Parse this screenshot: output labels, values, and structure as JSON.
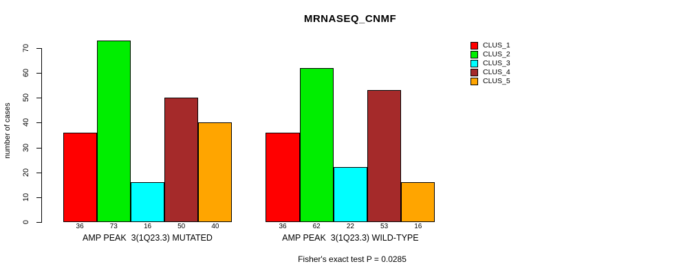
{
  "chart_data": {
    "type": "bar",
    "title": "MRNASEQ_CNMF",
    "ylabel": "number of cases",
    "xlabel": "",
    "ylim": [
      0,
      73
    ],
    "yticks": [
      0,
      10,
      20,
      30,
      40,
      50,
      60,
      70
    ],
    "grid": false,
    "legend_position": "right",
    "series": [
      {
        "name": "CLUS_1",
        "color": "#ff0000"
      },
      {
        "name": "CLUS_2",
        "color": "#00ee00"
      },
      {
        "name": "CLUS_3",
        "color": "#00ffff"
      },
      {
        "name": "CLUS_4",
        "color": "#a52a2a"
      },
      {
        "name": "CLUS_5",
        "color": "#ffa500"
      }
    ],
    "groups": [
      {
        "label": "AMP PEAK  3(1Q23.3) MUTATED",
        "values": [
          36,
          73,
          16,
          50,
          40
        ]
      },
      {
        "label": "AMP PEAK  3(1Q23.3) WILD-TYPE",
        "values": [
          36,
          62,
          22,
          53,
          16
        ]
      }
    ],
    "bar_value_labels_shown": true,
    "caption": "Fisher's exact test P = 0.0285",
    "axis_color": "#000000",
    "bar_border_color": "#000000",
    "background_color": "#ffffff"
  }
}
